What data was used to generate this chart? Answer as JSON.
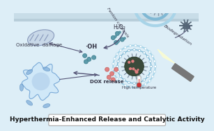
{
  "bg_color": "#ddeef7",
  "title_text": "Hyperthermia-Enhanced Release and Catalytic Activity",
  "title_box_color": "#ffffff",
  "title_border_color": "#aaaaaa",
  "title_fontsize": 6.5,
  "labels": {
    "h2o2": "H₂O₂",
    "oh": "·OH",
    "fenton": "Fenton catalysis",
    "oxidative": "Oxidative  damage",
    "dox": "DOX release",
    "biodeg": "Biodegradation",
    "hightemp": "High temperature"
  },
  "colors": {
    "light_blue": "#a8d4e8",
    "mid_blue": "#7fb8d4",
    "dark_blue": "#5b9ab5",
    "teal": "#5b9ab5",
    "dark_gray": "#555555",
    "nanoparticle_dark": "#3a4a3a",
    "nanoparticle_pink": "#e08080",
    "teal_dots": "#5b9aaa",
    "pink_dots": "#e08080",
    "arrow_color": "#555577",
    "laser_yellow": "#ffffaa",
    "laser_body": "#666666",
    "thermometer_red": "#cc3333",
    "cell_blue": "#6699cc",
    "mito_gray": "#8899aa",
    "top_bar": "#c8dde8"
  },
  "figsize": [
    3.07,
    1.89
  ],
  "dpi": 100
}
